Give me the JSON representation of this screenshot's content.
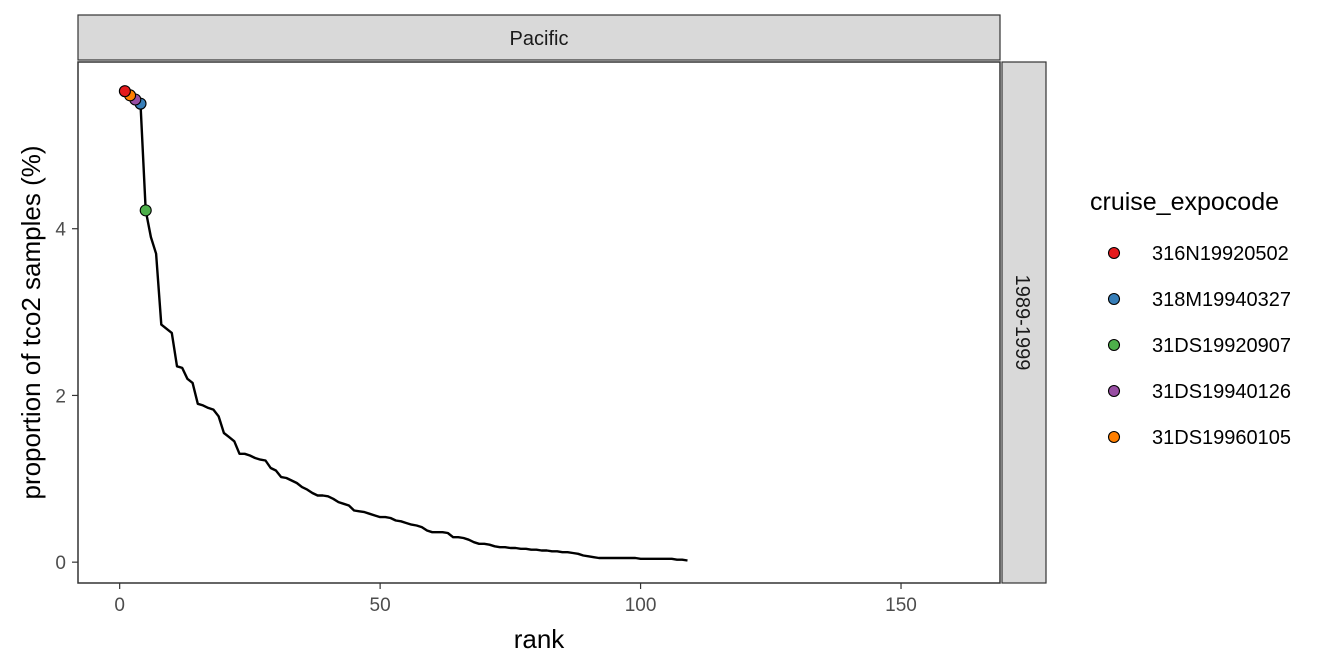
{
  "chart_data": {
    "type": "line",
    "facet_column": "Pacific",
    "facet_row": "1989-1999",
    "xlabel": "rank",
    "ylabel": "proportion of tco2 samples (%)",
    "xlim": [
      -8,
      169
    ],
    "ylim": [
      -0.25,
      6.0
    ],
    "x_ticks": [
      0,
      50,
      100,
      150
    ],
    "y_ticks": [
      0,
      2,
      4
    ],
    "grid": false,
    "legend_position": "right",
    "line_color": "#000000",
    "line": {
      "x": [
        1,
        2,
        3,
        4,
        5,
        6,
        7,
        8,
        9,
        10,
        11,
        12,
        13,
        14,
        15,
        16,
        17,
        18,
        19,
        20,
        21,
        22,
        23,
        24,
        25,
        26,
        27,
        28,
        29,
        30,
        31,
        32,
        33,
        34,
        35,
        36,
        37,
        38,
        39,
        40,
        41,
        42,
        43,
        44,
        45,
        46,
        47,
        48,
        49,
        50,
        51,
        52,
        53,
        54,
        55,
        56,
        57,
        58,
        59,
        60,
        61,
        62,
        63,
        64,
        65,
        66,
        67,
        68,
        69,
        70,
        71,
        72,
        73,
        74,
        75,
        76,
        77,
        78,
        79,
        80,
        81,
        82,
        83,
        84,
        85,
        86,
        87,
        88,
        89,
        90,
        91,
        92,
        93,
        94,
        95,
        96,
        97,
        98,
        99,
        100,
        101,
        102,
        103,
        104,
        105,
        106,
        107,
        108,
        109
      ],
      "y": [
        5.65,
        5.6,
        5.55,
        5.5,
        4.22,
        3.9,
        3.7,
        2.85,
        2.8,
        2.75,
        2.35,
        2.33,
        2.2,
        2.15,
        1.9,
        1.88,
        1.85,
        1.83,
        1.75,
        1.55,
        1.5,
        1.45,
        1.3,
        1.3,
        1.28,
        1.25,
        1.23,
        1.22,
        1.13,
        1.1,
        1.02,
        1.01,
        0.98,
        0.95,
        0.9,
        0.87,
        0.83,
        0.8,
        0.8,
        0.79,
        0.76,
        0.72,
        0.7,
        0.68,
        0.62,
        0.61,
        0.6,
        0.58,
        0.56,
        0.54,
        0.54,
        0.53,
        0.5,
        0.49,
        0.47,
        0.45,
        0.44,
        0.42,
        0.38,
        0.36,
        0.36,
        0.36,
        0.35,
        0.3,
        0.3,
        0.29,
        0.27,
        0.24,
        0.22,
        0.22,
        0.21,
        0.19,
        0.18,
        0.18,
        0.17,
        0.17,
        0.16,
        0.16,
        0.15,
        0.15,
        0.14,
        0.14,
        0.13,
        0.13,
        0.12,
        0.12,
        0.11,
        0.1,
        0.08,
        0.07,
        0.06,
        0.05,
        0.05,
        0.05,
        0.05,
        0.05,
        0.05,
        0.05,
        0.05,
        0.04,
        0.04,
        0.04,
        0.04,
        0.04,
        0.04,
        0.04,
        0.03,
        0.03,
        0.02
      ]
    },
    "legend_title": "cruise_expocode",
    "series": [
      {
        "name": "316N19920502",
        "color": "#E41A1C",
        "x": 1,
        "y": 5.65
      },
      {
        "name": "318M19940327",
        "color": "#377EB8",
        "x": 4,
        "y": 5.5
      },
      {
        "name": "31DS19920907",
        "color": "#4DAF4A",
        "x": 5,
        "y": 4.22
      },
      {
        "name": "31DS19940126",
        "color": "#984EA3",
        "x": 3,
        "y": 5.55
      },
      {
        "name": "31DS19960105",
        "color": "#FF7F00",
        "x": 2,
        "y": 5.6
      }
    ]
  }
}
